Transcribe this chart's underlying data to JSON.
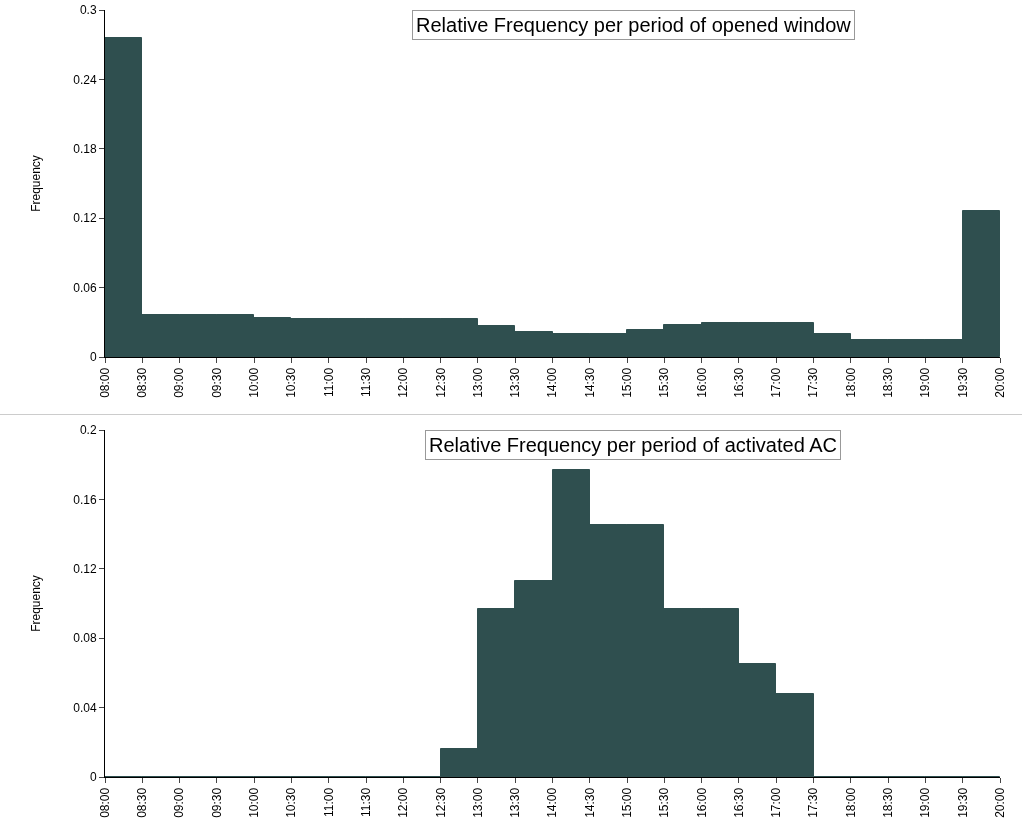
{
  "chart_data": [
    {
      "type": "histogram",
      "title": "Relative Frequency per period of opened window",
      "ylabel": "Frequency",
      "color": "#2f4f4f",
      "grid": false,
      "bins": [
        8,
        8.5,
        9,
        9.5,
        10,
        10.5,
        11,
        11.5,
        12,
        12.5,
        13,
        13.5,
        14,
        14.5,
        15,
        15.5,
        16,
        16.5,
        17,
        17.5,
        18,
        18.5,
        19,
        19.5,
        20
      ],
      "values": [
        0.276,
        0.036,
        0.036,
        0.036,
        0.034,
        0.033,
        0.033,
        0.033,
        0.033,
        0.033,
        0.027,
        0.022,
        0.02,
        0.02,
        0.023,
        0.028,
        0.029,
        0.029,
        0.029,
        0.02,
        0.015,
        0.015,
        0.015,
        0.126
      ],
      "xlim": [
        8,
        20
      ],
      "xticks": [
        {
          "value": 8,
          "label": "08:00"
        },
        {
          "value": 8.5,
          "label": "08:30"
        },
        {
          "value": 9,
          "label": "09:00"
        },
        {
          "value": 9.5,
          "label": "09:30"
        },
        {
          "value": 10,
          "label": "10:00"
        },
        {
          "value": 10.5,
          "label": "10:30"
        },
        {
          "value": 11,
          "label": "11:00"
        },
        {
          "value": 11.5,
          "label": "11:30"
        },
        {
          "value": 12,
          "label": "12:00"
        },
        {
          "value": 12.5,
          "label": "12:30"
        },
        {
          "value": 13,
          "label": "13:00"
        },
        {
          "value": 13.5,
          "label": "13:30"
        },
        {
          "value": 14,
          "label": "14:00"
        },
        {
          "value": 14.5,
          "label": "14:30"
        },
        {
          "value": 15,
          "label": "15:00"
        },
        {
          "value": 15.5,
          "label": "15:30"
        },
        {
          "value": 16,
          "label": "16:00"
        },
        {
          "value": 16.5,
          "label": "16:30"
        },
        {
          "value": 17,
          "label": "17:00"
        },
        {
          "value": 17.5,
          "label": "17:30"
        },
        {
          "value": 18,
          "label": "18:00"
        },
        {
          "value": 18.5,
          "label": "18:30"
        },
        {
          "value": 19,
          "label": "19:00"
        },
        {
          "value": 19.5,
          "label": "19:30"
        },
        {
          "value": 20,
          "label": "20:00"
        }
      ],
      "ylim": [
        0,
        0.3
      ],
      "yticks": [
        0,
        0.06,
        0.12,
        0.18,
        0.24,
        0.3
      ]
    },
    {
      "type": "histogram",
      "title": "Relative Frequency per period of activated AC",
      "ylabel": "Frequency",
      "color": "#2f4f4f",
      "grid": false,
      "bins": [
        8,
        8.5,
        9,
        9.5,
        10,
        10.5,
        11,
        11.5,
        12,
        12.5,
        13,
        13.5,
        14,
        14.5,
        15,
        15.5,
        16,
        16.5,
        17,
        17.5,
        18,
        18.5,
        19,
        19.5,
        20
      ],
      "values": [
        0,
        0,
        0,
        0,
        0,
        0,
        0,
        0,
        0,
        0.016,
        0.097,
        0.113,
        0.177,
        0.145,
        0.145,
        0.097,
        0.097,
        0.065,
        0.048,
        0,
        0,
        0,
        0,
        0
      ],
      "xlim": [
        8,
        20
      ],
      "xticks": [
        {
          "value": 8,
          "label": "08:00"
        },
        {
          "value": 8.5,
          "label": "08:30"
        },
        {
          "value": 9,
          "label": "09:00"
        },
        {
          "value": 9.5,
          "label": "09:30"
        },
        {
          "value": 10,
          "label": "10:00"
        },
        {
          "value": 10.5,
          "label": "10:30"
        },
        {
          "value": 11,
          "label": "11:00"
        },
        {
          "value": 11.5,
          "label": "11:30"
        },
        {
          "value": 12,
          "label": "12:00"
        },
        {
          "value": 12.5,
          "label": "12:30"
        },
        {
          "value": 13,
          "label": "13:00"
        },
        {
          "value": 13.5,
          "label": "13:30"
        },
        {
          "value": 14,
          "label": "14:00"
        },
        {
          "value": 14.5,
          "label": "14:30"
        },
        {
          "value": 15,
          "label": "15:00"
        },
        {
          "value": 15.5,
          "label": "15:30"
        },
        {
          "value": 16,
          "label": "16:00"
        },
        {
          "value": 16.5,
          "label": "16:30"
        },
        {
          "value": 17,
          "label": "17:00"
        },
        {
          "value": 17.5,
          "label": "17:30"
        },
        {
          "value": 18,
          "label": "18:00"
        },
        {
          "value": 18.5,
          "label": "18:30"
        },
        {
          "value": 19,
          "label": "19:00"
        },
        {
          "value": 19.5,
          "label": "19:30"
        },
        {
          "value": 20,
          "label": "20:00"
        }
      ],
      "ylim": [
        0,
        0.2
      ],
      "yticks": [
        0,
        0.04,
        0.08,
        0.12,
        0.16,
        0.2
      ]
    }
  ]
}
